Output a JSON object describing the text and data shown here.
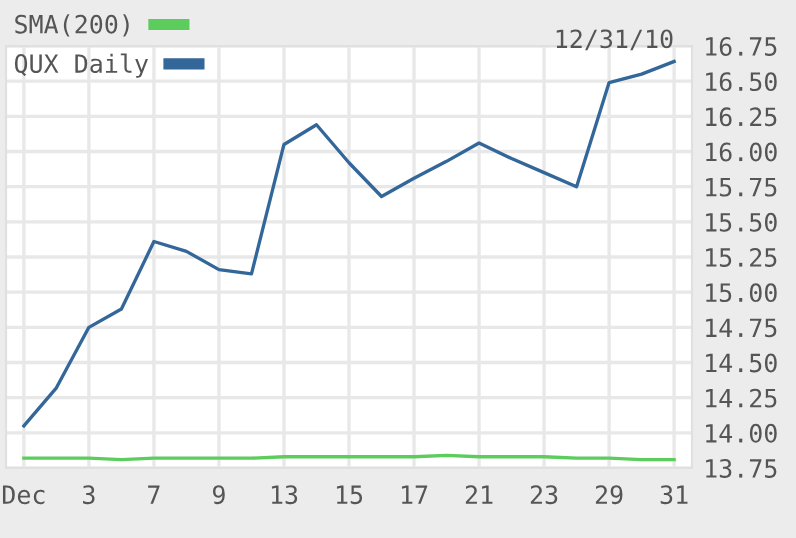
{
  "chart_data": {
    "type": "line",
    "categories": [
      "Dec",
      null,
      "3",
      null,
      "7",
      null,
      "9",
      null,
      "13",
      null,
      "15",
      null,
      "17",
      null,
      "21",
      null,
      "23",
      null,
      "29",
      null,
      "31"
    ],
    "series": [
      {
        "name": "SMA(200)",
        "color": "#5ccc5c",
        "values": [
          13.82,
          13.82,
          13.82,
          13.81,
          13.82,
          13.82,
          13.82,
          13.82,
          13.83,
          13.83,
          13.83,
          13.83,
          13.83,
          13.84,
          13.83,
          13.83,
          13.83,
          13.82,
          13.82,
          13.81,
          13.81
        ]
      },
      {
        "name": "QUX Daily",
        "color": "#336699",
        "values": [
          14.05,
          14.32,
          14.75,
          14.88,
          15.36,
          15.29,
          15.16,
          15.13,
          16.05,
          16.19,
          15.92,
          15.68,
          15.81,
          15.93,
          16.06,
          15.95,
          15.85,
          15.75,
          16.49,
          16.55,
          16.64
        ]
      }
    ],
    "ylim": [
      13.75,
      16.75
    ],
    "yticks": [
      13.75,
      {
        "value": 14,
        "label": "14.00"
      },
      14.25,
      {
        "value": 14.5,
        "label": "14.50"
      },
      14.75,
      {
        "value": 15,
        "label": "15.00"
      },
      15.25,
      {
        "value": 15.5,
        "label": "15.50"
      },
      15.75,
      {
        "value": 16,
        "label": "16.00"
      },
      16.25,
      {
        "value": 16.5,
        "label": "16.50"
      },
      16.75
    ],
    "annotations": [
      {
        "text": "12/31/10",
        "x": "31",
        "y": 16.64
      }
    ],
    "grid": true,
    "legend": "top left",
    "marker": "none",
    "line_style": "solid"
  }
}
